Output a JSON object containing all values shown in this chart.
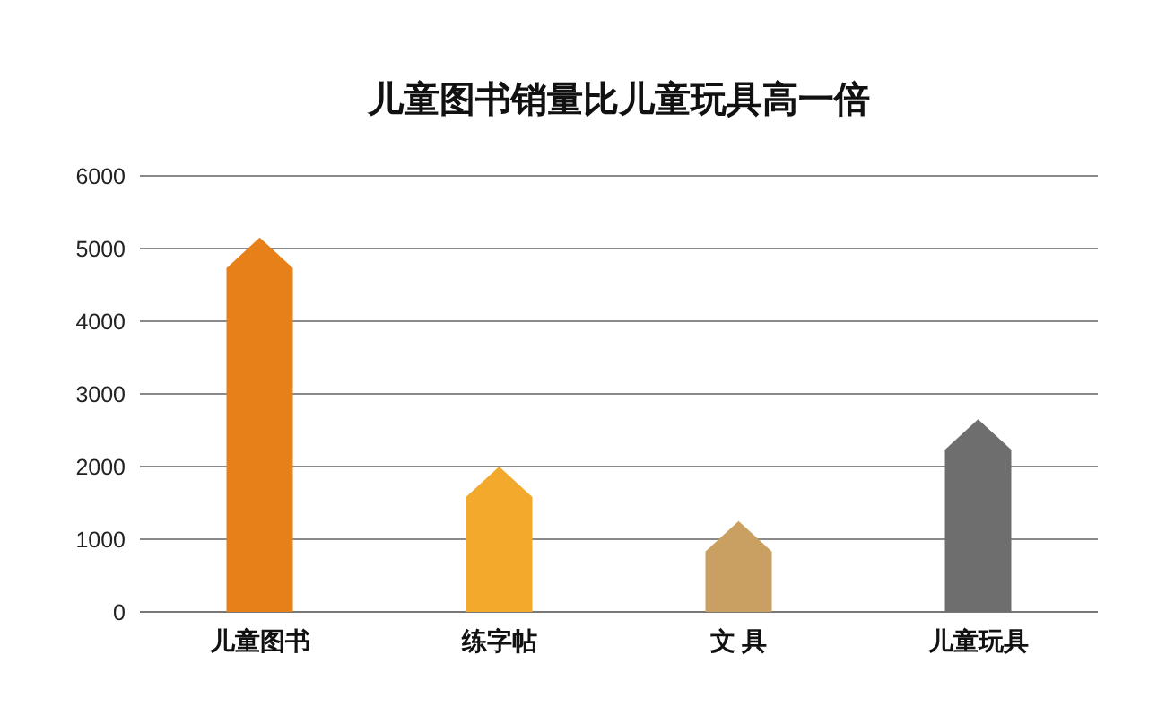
{
  "chart_data": {
    "type": "bar",
    "title": "儿童图书销量比儿童玩具高一倍",
    "categories": [
      "儿童图书",
      "练字帖",
      "文 具",
      "儿童玩具"
    ],
    "values": [
      5150,
      2000,
      1250,
      2650
    ],
    "colors": [
      "#e8801a",
      "#f3a92c",
      "#c9a062",
      "#6e6e6e"
    ],
    "ylim": [
      0,
      6000
    ],
    "yticks": [
      0,
      1000,
      2000,
      3000,
      4000,
      5000,
      6000
    ],
    "grid": "y"
  }
}
